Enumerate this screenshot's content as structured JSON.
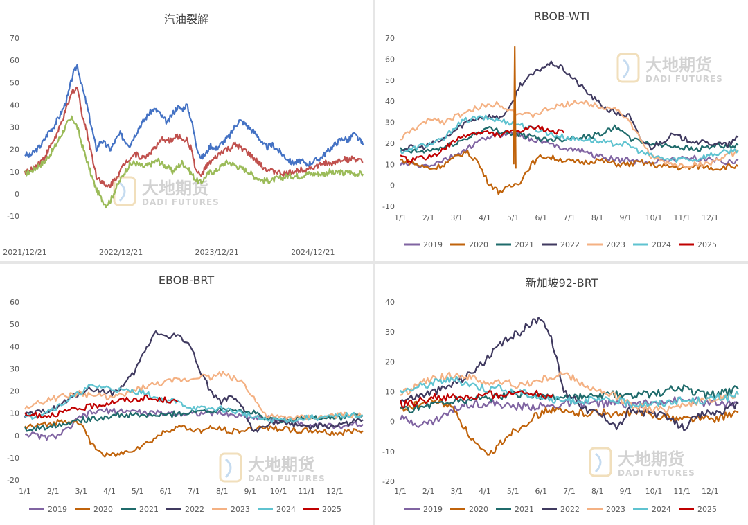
{
  "watermark": {
    "cn": "大地期货",
    "en": "DADI FUTURES"
  },
  "chart_data": [
    {
      "type": "line",
      "title": "汽油裂解",
      "ylim": [
        -10,
        70
      ],
      "yticks": [
        -10,
        0,
        10,
        20,
        30,
        40,
        50,
        60,
        70
      ],
      "x_tick_labels": [
        "2021/12/21",
        "2022/12/21",
        "2023/12/21",
        "2024/12/21"
      ],
      "x_tick_pos": [
        0,
        0.284,
        0.568,
        0.852
      ],
      "legend": false,
      "series": [
        {
          "color": "#4472c4",
          "values": [
            18,
            17,
            19,
            21,
            24,
            28,
            30,
            34,
            38,
            44,
            53,
            58,
            48,
            40,
            30,
            20,
            24,
            22,
            20,
            24,
            27,
            24,
            22,
            26,
            30,
            33,
            36,
            38,
            37,
            34,
            32,
            36,
            39,
            38,
            40,
            33,
            22,
            16,
            18,
            22,
            20,
            22,
            24,
            26,
            30,
            33,
            32,
            30,
            28,
            26,
            22,
            21,
            22,
            20,
            18,
            16,
            14,
            14,
            15,
            13,
            14,
            15,
            16,
            18,
            20,
            22,
            24,
            25,
            24,
            27,
            25,
            22
          ]
        },
        {
          "color": "#c0504d",
          "values": [
            10,
            10,
            12,
            14,
            16,
            20,
            24,
            28,
            34,
            40,
            46,
            48,
            36,
            28,
            18,
            8,
            6,
            3,
            4,
            7,
            10,
            14,
            16,
            18,
            17,
            16,
            18,
            20,
            22,
            25,
            24,
            24,
            26,
            25,
            24,
            20,
            10,
            8,
            12,
            14,
            16,
            18,
            20,
            20,
            22,
            21,
            20,
            18,
            16,
            14,
            12,
            11,
            10,
            10,
            9,
            9,
            10,
            10,
            11,
            11,
            12,
            12,
            13,
            14,
            13,
            14,
            15,
            16,
            15,
            16,
            15,
            14
          ]
        },
        {
          "color": "#9bbb59",
          "values": [
            9,
            10,
            11,
            13,
            14,
            17,
            20,
            24,
            28,
            32,
            34,
            30,
            22,
            15,
            8,
            2,
            -2,
            -5,
            -3,
            2,
            6,
            10,
            13,
            14,
            13,
            12,
            13,
            14,
            15,
            13,
            12,
            10,
            12,
            14,
            12,
            9,
            6,
            5,
            8,
            10,
            10,
            12,
            14,
            14,
            13,
            12,
            11,
            10,
            8,
            7,
            6,
            6,
            6,
            7,
            7,
            8,
            8,
            8,
            8,
            9,
            9,
            9,
            9,
            9,
            10,
            9,
            10,
            9,
            10,
            9,
            9,
            9
          ]
        }
      ]
    },
    {
      "type": "line",
      "title": "RBOB-WTI",
      "ylim": [
        -10,
        70
      ],
      "yticks": [
        -10,
        0,
        10,
        20,
        30,
        40,
        50,
        60,
        70
      ],
      "x_tick_labels": [
        "1/1",
        "2/1",
        "3/1",
        "4/1",
        "5/1",
        "6/1",
        "7/1",
        "8/1",
        "9/1",
        "10/1",
        "11/1",
        "12/1"
      ],
      "legend": true,
      "series": [
        {
          "name": "2019",
          "color": "#8064a2",
          "values": [
            10,
            10,
            9,
            10,
            12,
            14,
            17,
            20,
            23,
            24,
            25,
            24,
            22,
            21,
            19,
            18,
            17,
            16,
            14,
            13,
            12,
            12,
            11,
            11,
            12,
            12,
            13,
            13,
            12,
            12,
            11,
            12
          ]
        },
        {
          "name": "2020",
          "color": "#c0630b",
          "values": [
            12,
            11,
            9,
            8,
            10,
            13,
            16,
            12,
            2,
            -3,
            -1,
            2,
            10,
            14,
            13,
            12,
            11,
            11,
            12,
            11,
            10,
            10,
            11,
            10,
            9,
            9,
            8,
            9,
            9,
            8,
            9,
            9
          ]
        },
        {
          "name": "2021",
          "color": "#1f6b6b",
          "values": [
            17,
            16,
            16,
            17,
            18,
            20,
            22,
            25,
            27,
            26,
            25,
            24,
            23,
            22,
            22,
            22,
            23,
            23,
            24,
            26,
            28,
            22,
            21,
            20,
            19,
            19,
            18,
            17,
            18,
            19,
            18,
            19
          ]
        },
        {
          "name": "2022",
          "color": "#403a60",
          "values": [
            17,
            18,
            18,
            20,
            22,
            26,
            30,
            32,
            33,
            32,
            36,
            48,
            52,
            56,
            58,
            55,
            50,
            45,
            40,
            36,
            34,
            33,
            22,
            18,
            21,
            24,
            22,
            21,
            20,
            20,
            19,
            23
          ]
        },
        {
          "name": "2023",
          "color": "#f4b183",
          "values": [
            22,
            26,
            29,
            32,
            30,
            33,
            34,
            37,
            38,
            39,
            36,
            34,
            33,
            35,
            37,
            38,
            40,
            39,
            38,
            37,
            36,
            30,
            22,
            14,
            11,
            10,
            9,
            10,
            10,
            12,
            14,
            16
          ]
        },
        {
          "name": "2024",
          "color": "#5fc3d0",
          "values": [
            16,
            17,
            19,
            20,
            22,
            28,
            31,
            32,
            32,
            31,
            30,
            29,
            27,
            26,
            24,
            23,
            22,
            22,
            21,
            20,
            20,
            19,
            16,
            14,
            13,
            12,
            13,
            12,
            14,
            15,
            16,
            17
          ]
        },
        {
          "name": "2025",
          "color": "#c00000",
          "values": [
            13,
            12,
            13,
            14,
            17,
            21,
            24,
            25,
            25,
            24,
            25,
            26,
            27,
            27,
            26,
            25
          ]
        }
      ]
    },
    {
      "type": "line",
      "title": "EBOB-BRT",
      "ylim": [
        -20,
        60
      ],
      "yticks": [
        -20,
        -10,
        0,
        10,
        20,
        30,
        40,
        50,
        60
      ],
      "x_tick_labels": [
        "1/1",
        "2/1",
        "3/1",
        "4/1",
        "5/1",
        "6/1",
        "7/1",
        "8/1",
        "9/1",
        "10/1",
        "11/1",
        "12/1"
      ],
      "legend": true,
      "series": [
        {
          "name": "2019",
          "color": "#8064a2",
          "values": [
            1,
            0,
            -1,
            0,
            3,
            8,
            10,
            11,
            11,
            11,
            11,
            10,
            10,
            10,
            10,
            10,
            10,
            10,
            10,
            9,
            9,
            8,
            8,
            7,
            7,
            6,
            5,
            5,
            4,
            4,
            5,
            5
          ]
        },
        {
          "name": "2020",
          "color": "#c0630b",
          "values": [
            4,
            4,
            5,
            6,
            7,
            6,
            -3,
            -8,
            -9,
            -8,
            -6,
            -4,
            -1,
            2,
            4,
            3,
            2,
            3,
            3,
            2,
            2,
            3,
            4,
            3,
            3,
            2,
            2,
            2,
            1,
            1,
            2,
            2
          ]
        },
        {
          "name": "2021",
          "color": "#1f6b6b",
          "values": [
            3,
            3,
            4,
            5,
            6,
            7,
            7,
            8,
            9,
            9,
            9,
            9,
            9,
            9,
            10,
            10,
            11,
            11,
            12,
            12,
            11,
            10,
            8,
            7,
            7,
            8,
            8,
            8,
            8,
            8,
            9,
            9
          ]
        },
        {
          "name": "2022",
          "color": "#403a60",
          "values": [
            9,
            10,
            11,
            13,
            16,
            19,
            21,
            20,
            19,
            22,
            28,
            38,
            47,
            44,
            45,
            42,
            30,
            20,
            15,
            17,
            12,
            1,
            5,
            6,
            5,
            5,
            4,
            4,
            4,
            5,
            6,
            7
          ]
        },
        {
          "name": "2023",
          "color": "#f4b183",
          "values": [
            12,
            14,
            16,
            17,
            18,
            19,
            18,
            18,
            17,
            18,
            20,
            22,
            23,
            24,
            25,
            25,
            27,
            26,
            28,
            26,
            24,
            17,
            9,
            8,
            8,
            8,
            8,
            8,
            9,
            9,
            9,
            9
          ]
        },
        {
          "name": "2024",
          "color": "#5fc3d0",
          "values": [
            8,
            9,
            11,
            13,
            16,
            19,
            22,
            22,
            21,
            20,
            20,
            19,
            17,
            16,
            15,
            13,
            12,
            12,
            12,
            11,
            10,
            8,
            7,
            7,
            7,
            7,
            8,
            8,
            8,
            9,
            9,
            9
          ]
        },
        {
          "name": "2025",
          "color": "#c00000",
          "values": [
            9,
            9,
            9,
            10,
            11,
            12,
            13,
            14,
            15,
            16,
            16,
            17,
            16,
            16,
            15
          ]
        }
      ]
    },
    {
      "type": "line",
      "title": "新加坡92-BRT",
      "ylim": [
        -20,
        40
      ],
      "yticks": [
        -20,
        -10,
        0,
        10,
        20,
        30,
        40
      ],
      "x_tick_labels": [
        "1/1",
        "2/1",
        "3/1",
        "4/1",
        "5/1",
        "6/1",
        "7/1",
        "8/1",
        "9/1",
        "10/1",
        "11/1",
        "12/1"
      ],
      "legend": true,
      "series": [
        {
          "name": "2019",
          "color": "#8064a2",
          "values": [
            1,
            0,
            -1,
            0,
            2,
            4,
            6,
            6,
            6,
            6,
            5,
            5,
            5,
            5,
            5,
            6,
            6,
            6,
            6,
            6,
            6,
            6,
            6,
            6,
            7,
            7,
            7,
            7,
            6,
            6,
            6,
            6
          ]
        },
        {
          "name": "2020",
          "color": "#c0630b",
          "values": [
            4,
            5,
            6,
            7,
            6,
            4,
            -3,
            -8,
            -12,
            -8,
            -4,
            -2,
            1,
            3,
            4,
            3,
            3,
            3,
            3,
            3,
            2,
            3,
            3,
            2,
            2,
            1,
            1,
            1,
            1,
            1,
            2,
            3
          ]
        },
        {
          "name": "2021",
          "color": "#1f6b6b",
          "values": [
            4,
            4,
            5,
            6,
            6,
            7,
            7,
            8,
            8,
            8,
            9,
            9,
            9,
            8,
            8,
            8,
            8,
            8,
            8,
            9,
            9,
            8,
            9,
            9,
            10,
            11,
            11,
            10,
            9,
            9,
            10,
            11
          ]
        },
        {
          "name": "2022",
          "color": "#403a60",
          "values": [
            7,
            8,
            9,
            10,
            11,
            13,
            15,
            18,
            21,
            25,
            28,
            30,
            33,
            35,
            26,
            10,
            8,
            4,
            3,
            1,
            -2,
            4,
            3,
            3,
            2,
            0,
            -2,
            1,
            3,
            3,
            4,
            6
          ]
        },
        {
          "name": "2023",
          "color": "#f4b183",
          "values": [
            9,
            11,
            13,
            14,
            15,
            16,
            15,
            14,
            13,
            13,
            13,
            12,
            13,
            14,
            15,
            16,
            14,
            12,
            10,
            9,
            8,
            6,
            5,
            4,
            4,
            5,
            6,
            6,
            7,
            8,
            8,
            9
          ]
        },
        {
          "name": "2024",
          "color": "#5fc3d0",
          "values": [
            10,
            11,
            12,
            13,
            14,
            14,
            13,
            12,
            11,
            11,
            10,
            10,
            9,
            8,
            7,
            7,
            7,
            7,
            7,
            7,
            7,
            6,
            6,
            6,
            6,
            7,
            7,
            7,
            7,
            8,
            8,
            9
          ]
        },
        {
          "name": "2025",
          "color": "#c00000",
          "values": [
            6,
            6,
            7,
            8,
            8,
            8,
            8,
            8,
            9,
            9,
            9,
            10,
            10,
            9,
            9
          ]
        }
      ]
    }
  ]
}
